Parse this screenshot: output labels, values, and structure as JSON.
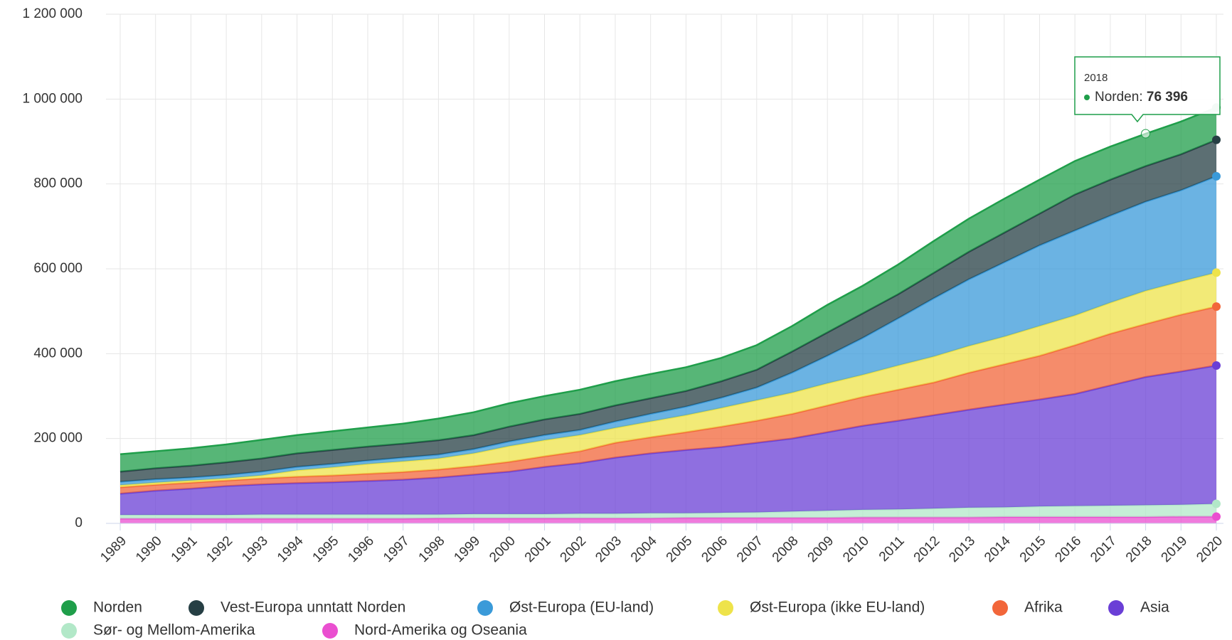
{
  "chart_data": {
    "type": "stacked_area",
    "categories": [
      "1989",
      "1990",
      "1991",
      "1992",
      "1993",
      "1994",
      "1995",
      "1996",
      "1997",
      "1998",
      "1999",
      "2000",
      "2001",
      "2002",
      "2003",
      "2004",
      "2005",
      "2006",
      "2007",
      "2008",
      "2009",
      "2010",
      "2011",
      "2012",
      "2013",
      "2014",
      "2015",
      "2016",
      "2017",
      "2018",
      "2019",
      "2020"
    ],
    "series": [
      {
        "name": "Norden",
        "color": "#1f9e4a",
        "values": [
          41000,
          40000,
          41000,
          42000,
          44000,
          43000,
          44000,
          45000,
          47000,
          51000,
          54000,
          55000,
          55000,
          57000,
          57000,
          57000,
          56000,
          55000,
          58000,
          60000,
          65000,
          65000,
          70000,
          75000,
          78000,
          80000,
          80000,
          79000,
          78000,
          76396,
          77000,
          76000
        ]
      },
      {
        "name": "Vest-Europa unntatt Norden",
        "color": "#263f44",
        "values": [
          24000,
          26000,
          28000,
          30000,
          31000,
          32000,
          33000,
          33000,
          33000,
          34000,
          33000,
          35000,
          37000,
          38000,
          38000,
          37000,
          37000,
          39000,
          42000,
          50000,
          55000,
          58000,
          57000,
          60000,
          65000,
          70000,
          75000,
          85000,
          85000,
          84000,
          85000,
          86000
        ]
      },
      {
        "name": "Øst-Europa (EU-land)",
        "color": "#3a9ad9",
        "values": [
          8000,
          8000,
          7000,
          8000,
          9000,
          8000,
          8000,
          8000,
          9000,
          9000,
          10000,
          11000,
          12000,
          12000,
          15000,
          18000,
          20000,
          24000,
          30000,
          47000,
          65000,
          87000,
          111000,
          137000,
          157000,
          175000,
          190000,
          200000,
          205000,
          210000,
          215000,
          227000
        ]
      },
      {
        "name": "Øst-Europa (ikke EU-land)",
        "color": "#eee34a",
        "values": [
          5000,
          5000,
          5000,
          5000,
          7000,
          15000,
          19000,
          23000,
          25000,
          26000,
          30000,
          37000,
          38000,
          38000,
          35000,
          37000,
          40000,
          44000,
          48000,
          50000,
          52000,
          52000,
          57000,
          61000,
          63000,
          65000,
          70000,
          70000,
          73000,
          78000,
          78000,
          80000
        ]
      },
      {
        "name": "Afrika",
        "color": "#f2663a",
        "values": [
          15000,
          14000,
          14000,
          13000,
          14000,
          15000,
          16000,
          17000,
          18000,
          19000,
          20000,
          23000,
          25000,
          28000,
          35000,
          38000,
          42000,
          48000,
          52000,
          58000,
          63000,
          68000,
          73000,
          77000,
          87000,
          95000,
          103000,
          115000,
          122000,
          125000,
          134000,
          139000
        ]
      },
      {
        "name": "Asia",
        "color": "#6a3fd6",
        "values": [
          50000,
          57000,
          62000,
          68000,
          71000,
          74000,
          76000,
          79000,
          82000,
          87000,
          93000,
          100000,
          111000,
          119000,
          132000,
          141000,
          149000,
          155000,
          164000,
          172000,
          185000,
          198000,
          209000,
          220000,
          231000,
          242000,
          252000,
          264000,
          283000,
          302000,
          314000,
          326000
        ]
      },
      {
        "name": "Sør- og Mellom-Amerika",
        "color": "#b2e8c8",
        "values": [
          9000,
          9000,
          9000,
          9000,
          10000,
          10000,
          10000,
          10000,
          10000,
          9000,
          10000,
          10000,
          10000,
          11000,
          11000,
          12000,
          11000,
          12000,
          13000,
          15000,
          17000,
          18000,
          19000,
          21000,
          23000,
          23000,
          25000,
          26000,
          27000,
          28000,
          28000,
          30000
        ]
      },
      {
        "name": "Nord-Amerika og Oseania",
        "color": "#ea4fd0",
        "values": [
          11000,
          11000,
          11000,
          11000,
          11000,
          11000,
          11000,
          11000,
          11000,
          12000,
          12000,
          12000,
          12000,
          12000,
          12000,
          12000,
          13000,
          13000,
          13000,
          13000,
          13000,
          14000,
          14000,
          14000,
          14000,
          15000,
          15000,
          15000,
          15000,
          15000,
          16000,
          16000
        ]
      }
    ],
    "ylim": [
      0,
      1200000
    ],
    "yticks": [
      0,
      {
        "value": 200000,
        "label": "200 000"
      },
      {
        "value": 400000,
        "label": "400 000"
      },
      {
        "value": 600000,
        "label": "600 000"
      },
      {
        "value": 800000,
        "label": "800 000"
      },
      {
        "value": 1000000,
        "label": "1 000 000"
      },
      {
        "value": 1200000,
        "label": "1 200 000"
      }
    ],
    "grid": true,
    "legend": "bottom",
    "tooltip": {
      "heading": "2018",
      "label": "Norden:",
      "value": 76396,
      "value_label": "76 396"
    }
  }
}
